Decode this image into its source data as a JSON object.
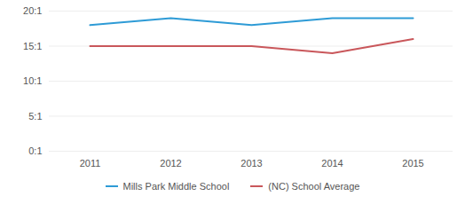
{
  "chart_data": {
    "type": "line",
    "categories": [
      "2011",
      "2012",
      "2013",
      "2014",
      "2015"
    ],
    "series": [
      {
        "name": "Mills Park Middle School",
        "color": "#2e9bd6",
        "values": [
          18,
          19,
          18,
          19,
          19
        ]
      },
      {
        "name": "(NC) School Average",
        "color": "#c9575b",
        "values": [
          15,
          15,
          15,
          14,
          16
        ]
      }
    ],
    "ylim": [
      0,
      20
    ],
    "yticks": [
      {
        "value": 0,
        "label": "0:1"
      },
      {
        "value": 5,
        "label": "5:1"
      },
      {
        "value": 10,
        "label": "10:1"
      },
      {
        "value": 15,
        "label": "15:1"
      },
      {
        "value": 20,
        "label": "20:1"
      }
    ],
    "grid": true,
    "legend": "bottom"
  }
}
